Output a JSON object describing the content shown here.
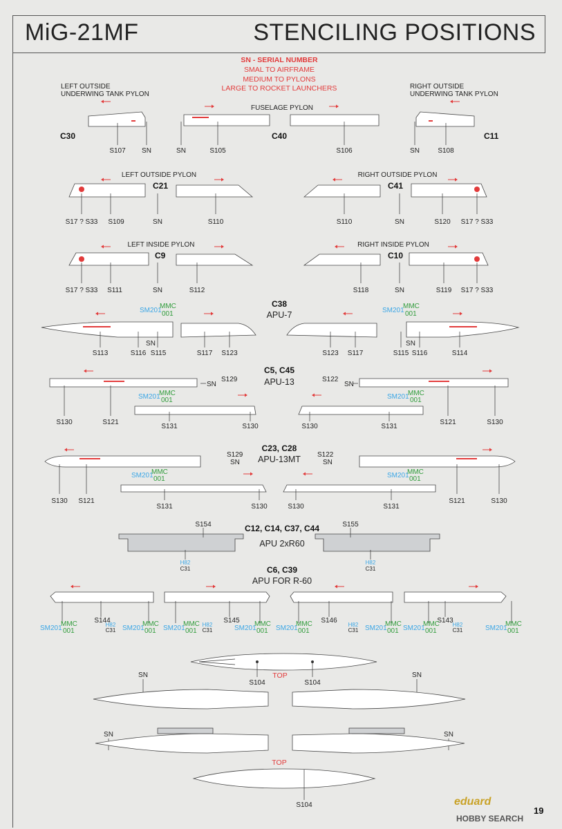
{
  "header": {
    "model": "MiG-21MF",
    "title": "STENCILING POSITIONS"
  },
  "legend": {
    "line1": "SN - SERIAL NUMBER",
    "line2": "SMAL TO AIRFRAME",
    "line3": "MEDIUM TO PYLONS",
    "line4": "LARGE TO ROCKET LAUNCHERS"
  },
  "sections": {
    "underwing_left": {
      "line1": "LEFT OUTSIDE",
      "line2": "UNDERWING TANK PYLON",
      "part": "C30"
    },
    "fuselage_pylon": {
      "title": "FUSELAGE PYLON",
      "part": "C40"
    },
    "underwing_right": {
      "line1": "RIGHT OUTSIDE",
      "line2": "UNDERWING TANK PYLON",
      "part": "C11"
    },
    "left_outside_pylon": {
      "title": "LEFT OUTSIDE PYLON",
      "part": "C21"
    },
    "right_outside_pylon": {
      "title": "RIGHT OUTSIDE PYLON",
      "part": "C41"
    },
    "left_inside_pylon": {
      "title": "LEFT INSIDE PYLON",
      "part": "C9"
    },
    "right_inside_pylon": {
      "title": "RIGHT INSIDE PYLON",
      "part": "C10"
    },
    "apu7": {
      "part": "C38",
      "name": "APU-7"
    },
    "apu13": {
      "part": "C5, C45",
      "name": "APU-13"
    },
    "apu13mt": {
      "part": "C23, C28",
      "name": "APU-13MT"
    },
    "apu2xr60": {
      "part": "C12, C14, C37, C44",
      "name": "APU 2xR60"
    },
    "apur60": {
      "part": "C6, C39",
      "name": "APU FOR R-60"
    }
  },
  "labels": {
    "row1": [
      "S107",
      "SN",
      "SN",
      "S105",
      "S106",
      "SN",
      "S108"
    ],
    "row2": [
      "S17 ? S33",
      "S109",
      "SN",
      "S110",
      "S110",
      "SN",
      "S120",
      "S17 ? S33"
    ],
    "row3": [
      "S17 ? S33",
      "S111",
      "SN",
      "S112",
      "S118",
      "SN",
      "S119",
      "S17 ? S33"
    ],
    "apu7": [
      "S113",
      "S116",
      "S115",
      "SN",
      "S117",
      "S123",
      "S123",
      "S117",
      "S115",
      "S116",
      "SN",
      "S114"
    ],
    "apu7_marks": {
      "sm": "SM201",
      "mmc": "MMC",
      "num": "001"
    },
    "apu13": [
      "S129",
      "SN",
      "S130",
      "S121",
      "S131",
      "S130",
      "S122",
      "SN",
      "S130",
      "S131",
      "S121",
      "S130"
    ],
    "apu13mt": [
      "S129",
      "SN",
      "S130",
      "S121",
      "S131",
      "S130",
      "S122",
      "SN",
      "S130",
      "S131",
      "S121",
      "S130"
    ],
    "apu2xr60": [
      "S154",
      "S155",
      "H82",
      "C31"
    ],
    "apur60": [
      "S144",
      "S145",
      "S146",
      "S143"
    ],
    "bottom": [
      "SN",
      "SN",
      "SN",
      "SN",
      "S104",
      "S104",
      "S104",
      "TOP",
      "TOP"
    ]
  },
  "footer": {
    "brand": "eduard",
    "page": "19",
    "watermark": "HOBBY SEARCH"
  },
  "colors": {
    "red": "#e23b3b",
    "blue": "#3aa6e6",
    "green": "#2f9b3a",
    "brand": "#c9a227"
  }
}
